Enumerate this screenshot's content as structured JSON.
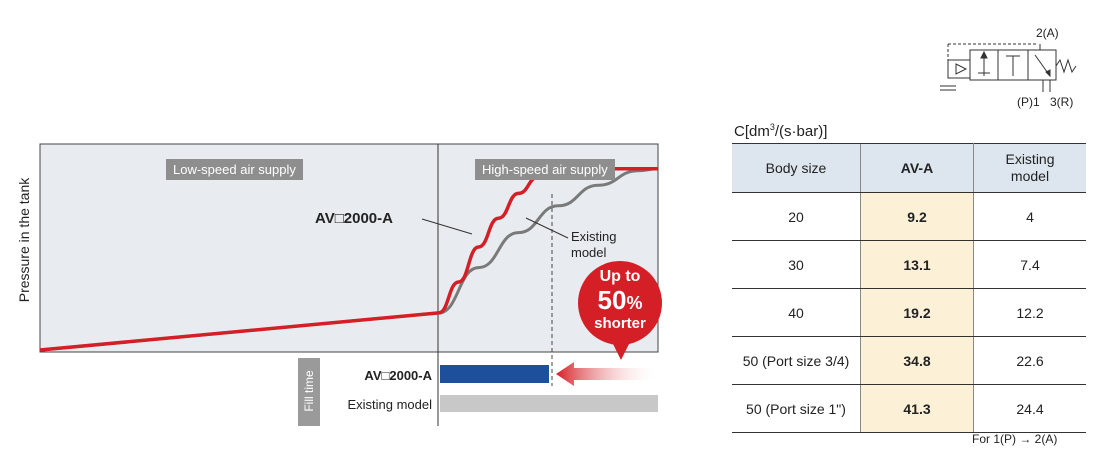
{
  "chart": {
    "ylabel": "Pressure in the tank",
    "zone_low": "Low-speed air supply",
    "zone_high": "High-speed air supply",
    "curve_new_label": "AV□2000-A",
    "curve_existing_label_1": "Existing",
    "curve_existing_label_2": "model",
    "fill_time_label": "Fill time",
    "bar_new_label": "AV□2000-A",
    "bar_existing_label": "Existing model",
    "badge_line1": "Up to",
    "badge_line2": "50",
    "badge_pct": "%",
    "badge_line3": "shorter",
    "colors": {
      "new_curve": "#d41f26",
      "existing_curve": "#7a7a7a",
      "new_bar": "#1d4f9c",
      "existing_bar": "#c8c8c8",
      "plot_bg": "#e8ebef"
    }
  },
  "chart_data": {
    "type": "line",
    "series": [
      {
        "name": "AV□2000-A",
        "x": [
          0,
          1.0,
          1.05,
          1.1,
          1.15,
          1.2,
          1.25,
          1.3,
          1.4,
          1.55
        ],
        "y": [
          0,
          0.18,
          0.33,
          0.5,
          0.64,
          0.76,
          0.84,
          0.88,
          0.88,
          0.88
        ]
      },
      {
        "name": "Existing model",
        "x": [
          0,
          1.0,
          1.1,
          1.2,
          1.3,
          1.4,
          1.5,
          1.55
        ],
        "y": [
          0,
          0.18,
          0.4,
          0.57,
          0.7,
          0.8,
          0.87,
          0.88
        ]
      }
    ],
    "fill_time": [
      {
        "name": "AV□2000-A",
        "value": 0.5
      },
      {
        "name": "Existing model",
        "value": 1.0
      }
    ]
  },
  "table": {
    "units_prefix": "C[dm",
    "units_exp": "3",
    "units_suffix": "/(s·bar)]",
    "headers": [
      "Body size",
      "AV-A",
      "Existing model"
    ],
    "rows": [
      [
        "20",
        "9.2",
        "4"
      ],
      [
        "30",
        "13.1",
        "7.4"
      ],
      [
        "40",
        "19.2",
        "12.2"
      ],
      [
        "50 (Port size 3/4)",
        "34.8",
        "22.6"
      ],
      [
        "50 (Port size 1\")",
        "41.3",
        "24.4"
      ]
    ],
    "footnote": "For 1(P) → 2(A)"
  },
  "symbol": {
    "port_a": "2(A)",
    "port_p": "(P)1",
    "port_r": "3(R)"
  }
}
